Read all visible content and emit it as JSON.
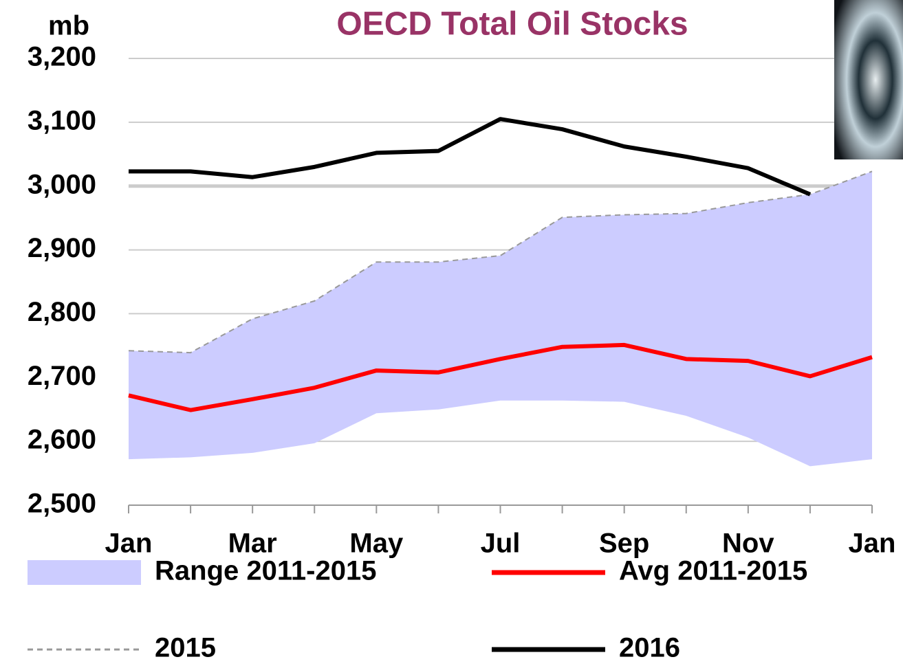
{
  "chart_data": {
    "type": "line",
    "title": "OECD Total Oil Stocks",
    "y_label": "mb",
    "categories": [
      "Jan",
      null,
      "Mar",
      null,
      "May",
      null,
      "Jul",
      null,
      "Sep",
      null,
      "Nov",
      null,
      "Jan"
    ],
    "ylim": [
      2500,
      3200
    ],
    "yticks": [
      {
        "value": 2500,
        "label": "2,500"
      },
      {
        "value": 2600,
        "label": "2,600"
      },
      {
        "value": 2700,
        "label": "2,700"
      },
      {
        "value": 2800,
        "label": "2,800"
      },
      {
        "value": 2900,
        "label": "2,900"
      },
      {
        "value": 3000,
        "label": "3,000"
      },
      {
        "value": 3100,
        "label": "3,100"
      },
      {
        "value": 3200,
        "label": "3,200"
      }
    ],
    "grid": true,
    "range": {
      "name": "Range 2011-2015",
      "color": "#ccccff",
      "low": [
        2572,
        2575,
        2582,
        2597,
        2644,
        2650,
        2664,
        2664,
        2662,
        2640,
        2606,
        2561,
        2572
      ],
      "high": [
        2742,
        2739,
        2792,
        2820,
        2881,
        2881,
        2891,
        2951,
        2955,
        2957,
        2974,
        2987,
        3023
      ]
    },
    "series": [
      {
        "name": "Avg 2011-2015",
        "color": "#ff0000",
        "style": "solid",
        "values": [
          2672,
          2649,
          2666,
          2684,
          2711,
          2708,
          2729,
          2748,
          2751,
          2729,
          2726,
          2702,
          2732
        ]
      },
      {
        "name": "2015",
        "color": "#999999",
        "style": "dashed",
        "values": [
          2742,
          2739,
          2792,
          2820,
          2881,
          2881,
          2891,
          2951,
          2955,
          2957,
          2974,
          2987,
          3023
        ]
      },
      {
        "name": "2016",
        "color": "#000000",
        "style": "solid",
        "values": [
          3023,
          3023,
          3014,
          3030,
          3052,
          3055,
          3105,
          3089,
          3062,
          3046,
          3028,
          2987,
          null
        ]
      }
    ]
  }
}
